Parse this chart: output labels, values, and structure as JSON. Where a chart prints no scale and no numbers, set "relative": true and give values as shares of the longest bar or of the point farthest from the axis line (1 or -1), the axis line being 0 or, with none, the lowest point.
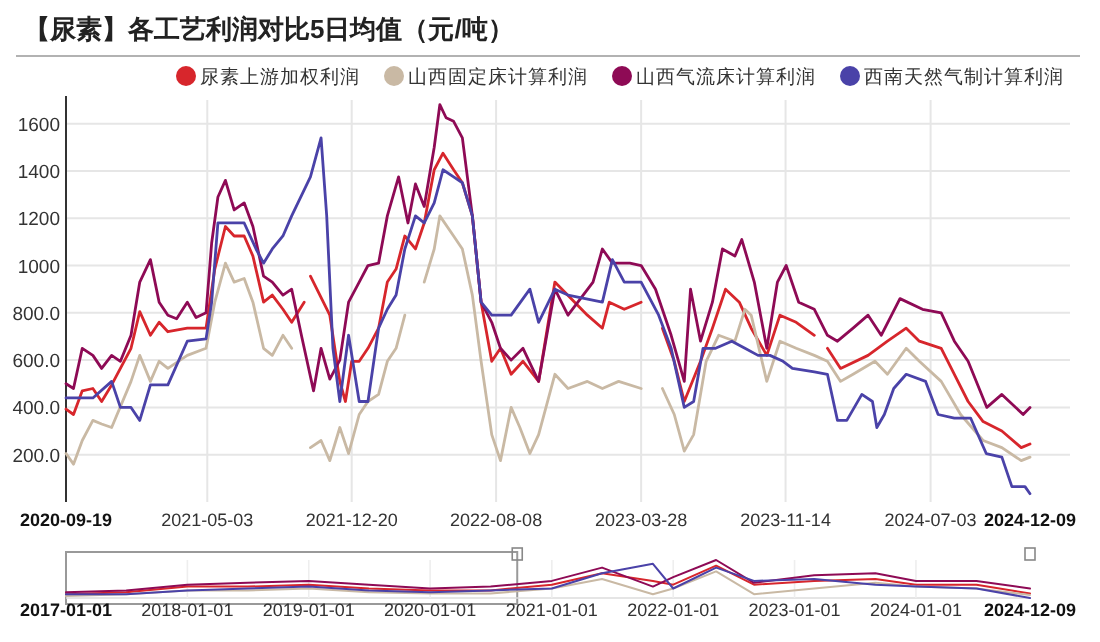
{
  "chart_data": [
    {
      "type": "line",
      "title": "【尿素】各工艺利润对比5日均值（元/吨）",
      "legend": "top",
      "grid": true,
      "marker": "none",
      "line_style": "solid",
      "xlim": [
        "2020-09-19",
        "2024-12-09"
      ],
      "xticks": [
        "2020-09-19",
        "2021-05-03",
        "2021-12-20",
        "2022-08-08",
        "2023-03-28",
        "2023-11-14",
        "2024-07-03",
        "2024-12-09"
      ],
      "ylim": [
        0,
        1700
      ],
      "yticks": [
        {
          "value": 200,
          "label": "200.0"
        },
        {
          "value": 400,
          "label": "400.0"
        },
        {
          "value": 600,
          "label": "600.0"
        },
        {
          "value": 800,
          "label": "800.0"
        },
        1000,
        1200,
        1400,
        1600
      ],
      "series": [
        {
          "name": "尿素上游加权利润",
          "color": "#d7262c",
          "x": [
            "2020-09-19",
            "2020-10-01",
            "2020-10-15",
            "2020-11-01",
            "2020-11-15",
            "2020-12-01",
            "2021-01-01",
            "2021-01-15",
            "2021-02-01",
            "2021-02-15",
            "2021-03-01",
            "2021-04-01",
            "2021-05-01",
            "2021-05-15",
            "2021-06-01",
            "2021-06-15",
            "2021-07-01",
            "2021-07-15",
            "2021-08-01",
            "2021-08-15",
            "2021-09-01",
            "2021-09-15",
            "2021-10-05",
            "2021-10-10",
            "2021-10-15",
            "2021-11-15",
            "2021-12-01",
            "2021-12-10",
            "2021-12-20",
            "2022-01-01",
            "2022-01-15",
            "2022-02-01",
            "2022-02-15",
            "2022-03-01",
            "2022-03-15",
            "2022-04-01",
            "2022-04-15",
            "2022-05-01",
            "2022-05-15",
            "2022-06-01",
            "2022-06-15",
            "2022-07-01",
            "2022-07-15",
            "2022-08-01",
            "2022-08-15",
            "2022-09-01",
            "2022-09-20",
            "2022-10-15",
            "2022-11-10",
            "2023-01-01",
            "2023-01-25",
            "2023-02-05",
            "2023-03-01",
            "2023-03-28",
            "2023-04-10",
            "2023-05-01",
            "2023-05-20",
            "2023-06-05",
            "2023-07-01",
            "2023-07-20",
            "2023-08-10",
            "2023-09-01",
            "2023-09-20",
            "2023-10-15",
            "2023-11-05",
            "2023-12-01",
            "2023-12-30",
            "2024-01-05",
            "2024-01-20",
            "2024-02-10",
            "2024-03-25",
            "2024-04-25",
            "2024-05-25",
            "2024-06-15",
            "2024-07-20",
            "2024-08-10",
            "2024-09-01",
            "2024-09-25",
            "2024-10-25",
            "2024-11-25",
            "2024-12-09"
          ],
          "values": [
            393,
            370,
            470,
            480,
            425,
            495,
            650,
            805,
            705,
            760,
            720,
            735,
            735,
            985,
            1165,
            1125,
            1125,
            1040,
            845,
            875,
            815,
            760,
            845,
            null,
            955,
            790,
            510,
            425,
            595,
            595,
            650,
            735,
            930,
            985,
            1125,
            1070,
            1180,
            1405,
            1475,
            1405,
            1350,
            1210,
            845,
            595,
            650,
            540,
            595,
            510,
            930,
            790,
            735,
            845,
            815,
            845,
            null,
            735,
            595,
            425,
            595,
            735,
            900,
            845,
            735,
            620,
            790,
            760,
            705,
            null,
            650,
            565,
            620,
            680,
            735,
            680,
            650,
            540,
            425,
            340,
            300,
            230,
            245
          ]
        },
        {
          "name": "山西固定床计算利润",
          "color": "#c9b9a4",
          "x": [
            "2020-09-19",
            "2020-10-01",
            "2020-10-15",
            "2020-11-01",
            "2020-11-15",
            "2020-12-01",
            "2021-01-01",
            "2021-01-15",
            "2021-02-01",
            "2021-02-15",
            "2021-03-01",
            "2021-04-01",
            "2021-05-01",
            "2021-05-15",
            "2021-06-01",
            "2021-06-15",
            "2021-07-01",
            "2021-07-15",
            "2021-08-01",
            "2021-08-15",
            "2021-09-01",
            "2021-09-15",
            "2021-09-25",
            "2021-10-15",
            "2021-11-01",
            "2021-11-15",
            "2021-12-01",
            "2021-12-15",
            "2022-01-01",
            "2022-01-15",
            "2022-02-01",
            "2022-02-15",
            "2022-03-01",
            "2022-03-15",
            "2022-03-25",
            "2022-04-15",
            "2022-05-01",
            "2022-05-10",
            "2022-06-01",
            "2022-06-15",
            "2022-07-01",
            "2022-07-15",
            "2022-08-01",
            "2022-08-15",
            "2022-09-01",
            "2022-09-15",
            "2022-10-01",
            "2022-10-15",
            "2022-11-10",
            "2022-12-01",
            "2023-01-01",
            "2023-01-25",
            "2023-02-20",
            "2023-03-28",
            "2023-04-10",
            "2023-05-01",
            "2023-05-20",
            "2023-06-05",
            "2023-06-20",
            "2023-07-10",
            "2023-07-30",
            "2023-08-25",
            "2023-09-10",
            "2023-09-20",
            "2023-10-15",
            "2023-11-05",
            "2023-12-01",
            "2023-12-30",
            "2024-01-20",
            "2024-02-10",
            "2024-03-01",
            "2024-04-05",
            "2024-04-25",
            "2024-05-25",
            "2024-06-15",
            "2024-07-20",
            "2024-08-20",
            "2024-09-25",
            "2024-10-25",
            "2024-11-25",
            "2024-12-09"
          ],
          "values": [
            205,
            160,
            260,
            345,
            330,
            315,
            510,
            620,
            510,
            595,
            565,
            620,
            650,
            845,
            1010,
            930,
            945,
            845,
            650,
            620,
            705,
            650,
            null,
            230,
            260,
            175,
            315,
            205,
            370,
            425,
            455,
            595,
            650,
            790,
            null,
            930,
            1070,
            1210,
            1125,
            1070,
            875,
            595,
            285,
            175,
            400,
            315,
            205,
            285,
            540,
            480,
            510,
            480,
            510,
            480,
            null,
            480,
            370,
            215,
            285,
            595,
            705,
            680,
            815,
            790,
            510,
            680,
            650,
            620,
            595,
            510,
            540,
            595,
            540,
            650,
            595,
            510,
            370,
            260,
            230,
            175,
            190
          ]
        },
        {
          "name": "山西气流床计算利润",
          "color": "#8e0a55",
          "x": [
            "2020-09-19",
            "2020-10-01",
            "2020-10-15",
            "2020-11-01",
            "2020-11-15",
            "2020-12-01",
            "2020-12-15",
            "2021-01-01",
            "2021-01-15",
            "2021-02-01",
            "2021-02-15",
            "2021-03-01",
            "2021-03-15",
            "2021-04-01",
            "2021-04-15",
            "2021-05-01",
            "2021-05-10",
            "2021-05-20",
            "2021-06-01",
            "2021-06-15",
            "2021-07-01",
            "2021-07-15",
            "2021-08-01",
            "2021-08-15",
            "2021-09-01",
            "2021-09-15",
            "2021-10-01",
            "2021-10-20",
            "2021-11-01",
            "2021-11-15",
            "2021-12-01",
            "2021-12-15",
            "2022-01-01",
            "2022-01-15",
            "2022-02-01",
            "2022-02-15",
            "2022-03-05",
            "2022-03-20",
            "2022-04-01",
            "2022-04-15",
            "2022-05-01",
            "2022-05-10",
            "2022-05-20",
            "2022-06-01",
            "2022-06-15",
            "2022-07-01",
            "2022-07-15",
            "2022-08-01",
            "2022-08-15",
            "2022-09-01",
            "2022-09-20",
            "2022-10-15",
            "2022-11-10",
            "2022-12-01",
            "2023-01-10",
            "2023-01-25",
            "2023-02-10",
            "2023-03-10",
            "2023-03-28",
            "2023-04-20",
            "2023-05-15",
            "2023-06-05",
            "2023-06-15",
            "2023-07-01",
            "2023-07-20",
            "2023-08-05",
            "2023-08-25",
            "2023-09-05",
            "2023-09-25",
            "2023-10-15",
            "2023-11-01",
            "2023-11-15",
            "2023-12-05",
            "2023-12-30",
            "2024-01-20",
            "2024-02-05",
            "2024-03-01",
            "2024-03-25",
            "2024-04-15",
            "2024-05-15",
            "2024-06-20",
            "2024-07-20",
            "2024-08-10",
            "2024-09-01",
            "2024-10-01",
            "2024-10-25",
            "2024-11-28",
            "2024-12-09"
          ],
          "values": [
            500,
            480,
            650,
            620,
            565,
            620,
            595,
            705,
            930,
            1025,
            845,
            790,
            775,
            845,
            780,
            800,
            1095,
            1290,
            1360,
            1235,
            1265,
            1165,
            955,
            930,
            875,
            900,
            700,
            470,
            650,
            520,
            600,
            845,
            930,
            1000,
            1010,
            1210,
            1375,
            1180,
            1345,
            1250,
            1500,
            1680,
            1625,
            1610,
            1540,
            1210,
            845,
            760,
            650,
            600,
            650,
            510,
            900,
            790,
            930,
            1070,
            1010,
            1010,
            1000,
            900,
            705,
            510,
            900,
            680,
            845,
            1070,
            1040,
            1110,
            930,
            650,
            930,
            1000,
            845,
            815,
            705,
            680,
            735,
            790,
            705,
            860,
            815,
            800,
            680,
            595,
            400,
            455,
            370,
            400
          ]
        },
        {
          "name": "西南天然气制计算利润",
          "color": "#4a42a8",
          "x": [
            "2020-09-19",
            "2020-11-01",
            "2020-12-01",
            "2020-12-15",
            "2021-01-01",
            "2021-01-15",
            "2021-02-01",
            "2021-03-01",
            "2021-04-01",
            "2021-05-01",
            "2021-05-10",
            "2021-05-20",
            "2021-06-01",
            "2021-07-01",
            "2021-07-20",
            "2021-08-01",
            "2021-08-15",
            "2021-09-01",
            "2021-09-15",
            "2021-10-15",
            "2021-11-01",
            "2021-11-10",
            "2021-11-20",
            "2021-12-01",
            "2021-12-15",
            "2022-01-01",
            "2022-01-15",
            "2022-02-01",
            "2022-02-15",
            "2022-03-01",
            "2022-03-15",
            "2022-04-01",
            "2022-04-15",
            "2022-05-01",
            "2022-05-15",
            "2022-06-01",
            "2022-06-15",
            "2022-07-01",
            "2022-07-15",
            "2022-08-01",
            "2022-08-15",
            "2022-09-01",
            "2022-10-01",
            "2022-10-15",
            "2022-11-10",
            "2022-12-01",
            "2023-01-25",
            "2023-02-10",
            "2023-03-01",
            "2023-03-28",
            "2023-04-25",
            "2023-05-15",
            "2023-06-05",
            "2023-06-20",
            "2023-07-05",
            "2023-07-25",
            "2023-08-20",
            "2023-09-10",
            "2023-10-01",
            "2023-10-20",
            "2023-11-10",
            "2023-11-25",
            "2023-12-30",
            "2024-01-20",
            "2024-02-05",
            "2024-02-20",
            "2024-03-15",
            "2024-04-01",
            "2024-04-08",
            "2024-04-20",
            "2024-05-05",
            "2024-05-25",
            "2024-06-25",
            "2024-07-15",
            "2024-08-10",
            "2024-09-05",
            "2024-09-30",
            "2024-10-25",
            "2024-11-10",
            "2024-12-01",
            "2024-12-09"
          ],
          "values": [
            440,
            440,
            510,
            400,
            400,
            345,
            495,
            495,
            680,
            690,
            845,
            1180,
            1180,
            1180,
            1070,
            1010,
            1070,
            1125,
            1210,
            1375,
            1540,
            1210,
            650,
            425,
            705,
            425,
            425,
            735,
            815,
            875,
            1070,
            1210,
            1180,
            1265,
            1405,
            1375,
            1350,
            1210,
            845,
            790,
            790,
            790,
            900,
            760,
            900,
            875,
            845,
            1025,
            930,
            930,
            790,
            650,
            400,
            425,
            650,
            650,
            680,
            650,
            620,
            620,
            595,
            565,
            550,
            540,
            345,
            345,
            455,
            425,
            315,
            370,
            480,
            540,
            510,
            370,
            355,
            355,
            205,
            190,
            65,
            65,
            35
          ]
        }
      ]
    },
    {
      "type": "line",
      "relative": true,
      "xlim": [
        "2017-01-01",
        "2024-12-09"
      ],
      "xticks": [
        "2017-01-01",
        "2018-01-01",
        "2019-01-01",
        "2020-01-01",
        "2021-01-01",
        "2022-01-01",
        "2023-01-01",
        "2024-01-01",
        "2024-12-09"
      ],
      "bands": [
        {
          "axis": "x",
          "from": "2017-01-01",
          "to": "2020-09-19",
          "color": "#ffffff"
        }
      ],
      "grid": "x",
      "x": [
        "2017-01-01",
        "2017-07-01",
        "2018-01-01",
        "2018-07-01",
        "2019-01-01",
        "2019-07-01",
        "2020-01-01",
        "2020-07-01",
        "2021-01-01",
        "2021-06-01",
        "2021-11-01",
        "2022-01-01",
        "2022-05-10",
        "2022-09-01",
        "2023-03-01",
        "2023-09-01",
        "2024-01-01",
        "2024-07-01",
        "2024-12-09"
      ],
      "series": [
        {
          "color": "#d7262c",
          "values": [
            0.1,
            0.15,
            0.3,
            0.3,
            0.35,
            0.25,
            0.2,
            0.2,
            0.35,
            0.65,
            0.45,
            0.35,
            0.85,
            0.35,
            0.45,
            0.5,
            0.35,
            0.35,
            0.12
          ]
        },
        {
          "color": "#c9b9a4",
          "values": [
            0.05,
            0.1,
            0.2,
            0.2,
            0.25,
            0.15,
            0.12,
            0.12,
            0.25,
            0.5,
            0.1,
            0.25,
            0.7,
            0.1,
            0.25,
            0.4,
            0.3,
            0.25,
            0.08
          ]
        },
        {
          "color": "#8e0a55",
          "values": [
            0.15,
            0.2,
            0.35,
            0.4,
            0.45,
            0.35,
            0.25,
            0.3,
            0.45,
            0.8,
            0.3,
            0.55,
            1.0,
            0.4,
            0.6,
            0.65,
            0.45,
            0.45,
            0.25
          ]
        },
        {
          "color": "#4a42a8",
          "values": [
            0.1,
            0.1,
            0.2,
            0.25,
            0.3,
            0.2,
            0.15,
            0.2,
            0.25,
            0.65,
            0.9,
            0.25,
            0.8,
            0.45,
            0.5,
            0.35,
            0.3,
            0.25,
            0.0
          ]
        }
      ]
    }
  ]
}
